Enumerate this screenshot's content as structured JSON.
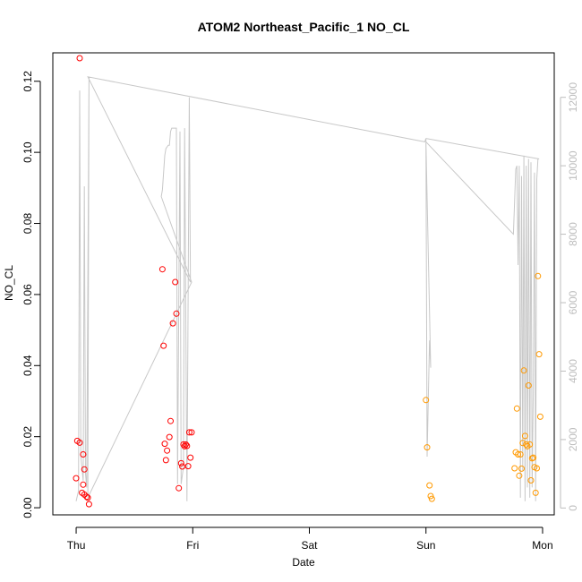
{
  "chart_data": {
    "type": "scatter",
    "title": "ATOM2 Northeast_Pacific_1 NO_CL",
    "xlabel": "Date",
    "ylabel": "NO_CL",
    "x_ticks": [
      "Thu",
      "Fri",
      "Sat",
      "Sun",
      "Mon"
    ],
    "xlim": [
      -0.2,
      4.1
    ],
    "ylim": [
      -0.002,
      0.128
    ],
    "y_ticks": [
      "0.00",
      "0.02",
      "0.04",
      "0.06",
      "0.08",
      "0.10",
      "0.12"
    ],
    "y2lim": [
      -200,
      13300
    ],
    "y2_ticks": [
      "0",
      "2000",
      "4000",
      "6000",
      "8000",
      "10000",
      "12000"
    ],
    "colors": {
      "series_red": "#ff0000",
      "series_orange": "#ff9900",
      "secondary_line": "#c8c8c8"
    },
    "series": [
      {
        "color": "red",
        "points": [
          [
            0.0,
            0.0083
          ],
          [
            0.01,
            0.0188
          ],
          [
            0.03,
            0.0183
          ],
          [
            0.03,
            0.1265
          ],
          [
            0.05,
            0.0042
          ],
          [
            0.06,
            0.0065
          ],
          [
            0.06,
            0.015
          ],
          [
            0.07,
            0.0108
          ],
          [
            0.07,
            0.0037
          ],
          [
            0.09,
            0.0031
          ],
          [
            0.1,
            0.0028
          ],
          [
            0.11,
            0.001
          ],
          [
            0.74,
            0.0671
          ],
          [
            0.75,
            0.0456
          ],
          [
            0.76,
            0.018
          ],
          [
            0.77,
            0.0134
          ],
          [
            0.78,
            0.0161
          ],
          [
            0.8,
            0.0199
          ],
          [
            0.81,
            0.0244
          ],
          [
            0.83,
            0.0519
          ],
          [
            0.85,
            0.0635
          ],
          [
            0.86,
            0.0546
          ],
          [
            0.88,
            0.0055
          ],
          [
            0.9,
            0.0125
          ],
          [
            0.91,
            0.0116
          ],
          [
            0.92,
            0.0178
          ],
          [
            0.93,
            0.0173
          ],
          [
            0.94,
            0.0178
          ],
          [
            0.95,
            0.0174
          ],
          [
            0.96,
            0.0117
          ],
          [
            0.97,
            0.0212
          ],
          [
            0.98,
            0.0141
          ],
          [
            0.99,
            0.0212
          ]
        ]
      },
      {
        "color": "orange",
        "points": [
          [
            3.0,
            0.0303
          ],
          [
            3.01,
            0.017
          ],
          [
            3.03,
            0.0063
          ],
          [
            3.04,
            0.0033
          ],
          [
            3.05,
            0.0025
          ],
          [
            3.76,
            0.0111
          ],
          [
            3.77,
            0.0156
          ],
          [
            3.78,
            0.0279
          ],
          [
            3.79,
            0.015
          ],
          [
            3.8,
            0.009
          ],
          [
            3.81,
            0.015
          ],
          [
            3.82,
            0.011
          ],
          [
            3.83,
            0.0182
          ],
          [
            3.84,
            0.0386
          ],
          [
            3.85,
            0.0202
          ],
          [
            3.86,
            0.0178
          ],
          [
            3.87,
            0.0173
          ],
          [
            3.88,
            0.0344
          ],
          [
            3.89,
            0.0178
          ],
          [
            3.9,
            0.0077
          ],
          [
            3.91,
            0.0139
          ],
          [
            3.92,
            0.0141
          ],
          [
            3.93,
            0.0114
          ],
          [
            3.94,
            0.0042
          ],
          [
            3.95,
            0.0111
          ],
          [
            3.96,
            0.0652
          ],
          [
            3.97,
            0.0432
          ],
          [
            3.98,
            0.0256
          ]
        ]
      }
    ],
    "secondary_line": [
      [
        0.0,
        200
      ],
      [
        0.02,
        500
      ],
      [
        0.03,
        12200
      ],
      [
        0.04,
        1500
      ],
      [
        0.06,
        800
      ],
      [
        0.07,
        9400
      ],
      [
        0.08,
        1000
      ],
      [
        0.09,
        600
      ],
      [
        0.11,
        12600
      ],
      [
        0.1,
        300
      ],
      [
        0.99,
        6600
      ],
      [
        0.73,
        9100
      ],
      [
        0.74,
        9300
      ],
      [
        0.76,
        10300
      ],
      [
        0.77,
        10500
      ],
      [
        0.79,
        10600
      ],
      [
        0.8,
        10600
      ],
      [
        0.81,
        11000
      ],
      [
        0.82,
        11100
      ],
      [
        0.86,
        11100
      ],
      [
        0.87,
        700
      ],
      [
        0.89,
        11000
      ],
      [
        0.9,
        700
      ],
      [
        0.92,
        1200
      ],
      [
        0.93,
        11100
      ],
      [
        0.95,
        200
      ],
      [
        0.97,
        12000
      ],
      [
        0.98,
        6600
      ],
      [
        0.1,
        12600
      ],
      [
        2.99,
        10700
      ],
      [
        3.0,
        10800
      ],
      [
        3.01,
        1500
      ],
      [
        3.03,
        4900
      ],
      [
        3.04,
        4100
      ],
      [
        3.0,
        10700
      ],
      [
        3.75,
        8000
      ],
      [
        3.77,
        9900
      ],
      [
        3.78,
        10000
      ],
      [
        3.79,
        7100
      ],
      [
        3.8,
        10000
      ],
      [
        3.81,
        300
      ],
      [
        3.82,
        9700
      ],
      [
        3.83,
        1100
      ],
      [
        3.84,
        10300
      ],
      [
        3.85,
        200
      ],
      [
        3.86,
        10000
      ],
      [
        3.87,
        600
      ],
      [
        3.88,
        10200
      ],
      [
        3.89,
        300
      ],
      [
        3.9,
        10100
      ],
      [
        3.91,
        600
      ],
      [
        3.92,
        3400
      ],
      [
        3.93,
        9800
      ],
      [
        3.94,
        200
      ],
      [
        3.95,
        9600
      ],
      [
        3.96,
        10200
      ],
      [
        3.97,
        10200
      ],
      [
        3.0,
        10800
      ],
      [
        3.97,
        10200
      ]
    ]
  }
}
